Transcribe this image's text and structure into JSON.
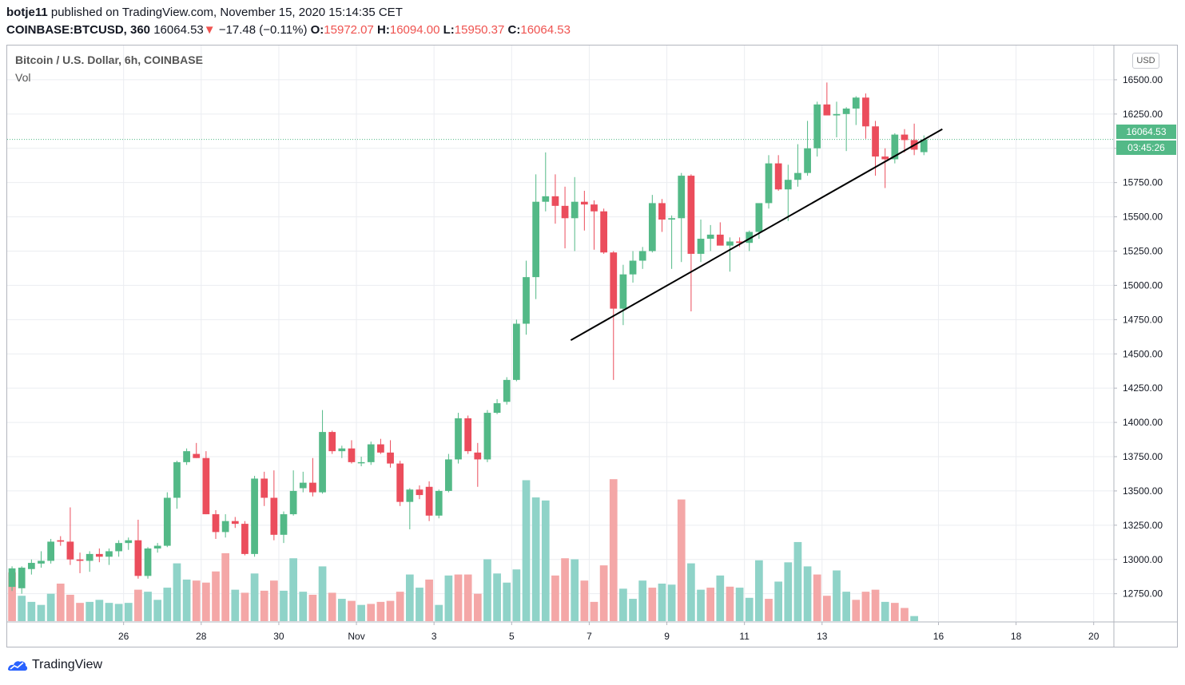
{
  "header": {
    "author": "botje11",
    "published": "published on TradingView.com, November 15, 2020 15:14:35 CET",
    "symbol": "COINBASE:BTCUSD, 360",
    "last": "16064.53",
    "change_arrow": "▼",
    "change": "−17.48 (−0.11%)",
    "open_label": "O:",
    "open": "15972.07",
    "high_label": "H:",
    "high": "16094.00",
    "low_label": "L:",
    "low": "15950.37",
    "close_label": "C:",
    "close": "16064.53"
  },
  "legend": {
    "title": "Bitcoin / U.S. Dollar, 6h, COINBASE",
    "volume": "Vol"
  },
  "price_scale": {
    "currency": "USD",
    "last_price": "16064.53",
    "countdown": "03:45:26"
  },
  "footer": {
    "brand": "TradingView"
  },
  "colors": {
    "up": "#53b987",
    "down": "#eb4d5c",
    "up_vol": "#8fd3c8",
    "down_vol": "#f4a7a7",
    "grid": "#ebedf1",
    "trendline": "#000000"
  },
  "chart_data": {
    "type": "candlestick",
    "ylim": [
      12550,
      16750
    ],
    "y_ticks": [
      "16500.00",
      "16250.00",
      "16000.00",
      "15750.00",
      "15500.00",
      "15250.00",
      "15000.00",
      "14750.00",
      "14500.00",
      "14250.00",
      "14000.00",
      "13750.00",
      "13500.00",
      "13250.00",
      "13000.00",
      "12750.00"
    ],
    "x_ticks": [
      {
        "label": "26",
        "bar": 11.5
      },
      {
        "label": "28",
        "bar": 19.5
      },
      {
        "label": "30",
        "bar": 27.5
      },
      {
        "label": "Nov",
        "bar": 35.5
      },
      {
        "label": "3",
        "bar": 43.5
      },
      {
        "label": "5",
        "bar": 51.5
      },
      {
        "label": "7",
        "bar": 59.5
      },
      {
        "label": "9",
        "bar": 67.5
      },
      {
        "label": "11",
        "bar": 75.5
      },
      {
        "label": "13",
        "bar": 83.5
      },
      {
        "label": "16",
        "bar": 95.5
      },
      {
        "label": "18",
        "bar": 103.5
      },
      {
        "label": "20",
        "bar": 111.5
      }
    ],
    "total_slots": 114,
    "candles": [
      {
        "o": 12800,
        "h": 12950,
        "l": 12770,
        "c": 12935
      },
      {
        "o": 12790,
        "h": 12950,
        "l": 12750,
        "c": 12940
      },
      {
        "o": 12930,
        "h": 13000,
        "l": 12890,
        "c": 12975
      },
      {
        "o": 12970,
        "h": 13060,
        "l": 12940,
        "c": 12990
      },
      {
        "o": 12990,
        "h": 13150,
        "l": 12970,
        "c": 13130
      },
      {
        "o": 13140,
        "h": 13170,
        "l": 13100,
        "c": 13130
      },
      {
        "o": 13130,
        "h": 13380,
        "l": 12960,
        "c": 13000
      },
      {
        "o": 13000,
        "h": 13050,
        "l": 12900,
        "c": 12990
      },
      {
        "o": 12990,
        "h": 13060,
        "l": 12910,
        "c": 13040
      },
      {
        "o": 13040,
        "h": 13080,
        "l": 12980,
        "c": 13020
      },
      {
        "o": 13020,
        "h": 13080,
        "l": 12960,
        "c": 13060
      },
      {
        "o": 13060,
        "h": 13140,
        "l": 13020,
        "c": 13120
      },
      {
        "o": 13120,
        "h": 13160,
        "l": 13070,
        "c": 13140
      },
      {
        "o": 13140,
        "h": 13290,
        "l": 12860,
        "c": 12880
      },
      {
        "o": 12880,
        "h": 13090,
        "l": 12860,
        "c": 13080
      },
      {
        "o": 13080,
        "h": 13120,
        "l": 13050,
        "c": 13100
      },
      {
        "o": 13100,
        "h": 13490,
        "l": 13090,
        "c": 13450
      },
      {
        "o": 13450,
        "h": 13720,
        "l": 13370,
        "c": 13710
      },
      {
        "o": 13710,
        "h": 13810,
        "l": 13690,
        "c": 13790
      },
      {
        "o": 13770,
        "h": 13850,
        "l": 13740,
        "c": 13740
      },
      {
        "o": 13740,
        "h": 13790,
        "l": 13330,
        "c": 13330
      },
      {
        "o": 13330,
        "h": 13360,
        "l": 13150,
        "c": 13200
      },
      {
        "o": 13200,
        "h": 13330,
        "l": 13160,
        "c": 13280
      },
      {
        "o": 13280,
        "h": 13310,
        "l": 13230,
        "c": 13260
      },
      {
        "o": 13260,
        "h": 13280,
        "l": 13030,
        "c": 13040
      },
      {
        "o": 13040,
        "h": 13610,
        "l": 13020,
        "c": 13590
      },
      {
        "o": 13590,
        "h": 13640,
        "l": 13390,
        "c": 13450
      },
      {
        "o": 13450,
        "h": 13650,
        "l": 13140,
        "c": 13180
      },
      {
        "o": 13180,
        "h": 13350,
        "l": 13120,
        "c": 13330
      },
      {
        "o": 13330,
        "h": 13650,
        "l": 13320,
        "c": 13500
      },
      {
        "o": 13520,
        "h": 13640,
        "l": 13490,
        "c": 13560
      },
      {
        "o": 13560,
        "h": 13740,
        "l": 13460,
        "c": 13490
      },
      {
        "o": 13490,
        "h": 14090,
        "l": 13480,
        "c": 13930
      },
      {
        "o": 13930,
        "h": 13940,
        "l": 13770,
        "c": 13790
      },
      {
        "o": 13790,
        "h": 13830,
        "l": 13740,
        "c": 13810
      },
      {
        "o": 13810,
        "h": 13870,
        "l": 13700,
        "c": 13710
      },
      {
        "o": 13710,
        "h": 13750,
        "l": 13680,
        "c": 13710
      },
      {
        "o": 13710,
        "h": 13860,
        "l": 13690,
        "c": 13840
      },
      {
        "o": 13840,
        "h": 13880,
        "l": 13770,
        "c": 13780
      },
      {
        "o": 13780,
        "h": 13870,
        "l": 13670,
        "c": 13700
      },
      {
        "o": 13700,
        "h": 13720,
        "l": 13390,
        "c": 13420
      },
      {
        "o": 13420,
        "h": 13520,
        "l": 13220,
        "c": 13510
      },
      {
        "o": 13510,
        "h": 13540,
        "l": 13440,
        "c": 13470
      },
      {
        "o": 13530,
        "h": 13570,
        "l": 13280,
        "c": 13320
      },
      {
        "o": 13320,
        "h": 13510,
        "l": 13300,
        "c": 13500
      },
      {
        "o": 13500,
        "h": 13770,
        "l": 13490,
        "c": 13730
      },
      {
        "o": 13730,
        "h": 14070,
        "l": 13700,
        "c": 14030
      },
      {
        "o": 14030,
        "h": 14050,
        "l": 13770,
        "c": 13790
      },
      {
        "o": 13780,
        "h": 13850,
        "l": 13530,
        "c": 13730
      },
      {
        "o": 13730,
        "h": 14090,
        "l": 13710,
        "c": 14070
      },
      {
        "o": 14070,
        "h": 14170,
        "l": 14060,
        "c": 14140
      },
      {
        "o": 14150,
        "h": 14330,
        "l": 14130,
        "c": 14310
      },
      {
        "o": 14310,
        "h": 14750,
        "l": 14300,
        "c": 14720
      },
      {
        "o": 14720,
        "h": 15180,
        "l": 14640,
        "c": 15060
      },
      {
        "o": 15060,
        "h": 15810,
        "l": 14900,
        "c": 15610
      },
      {
        "o": 15610,
        "h": 15970,
        "l": 15540,
        "c": 15650
      },
      {
        "o": 15650,
        "h": 15810,
        "l": 15450,
        "c": 15580
      },
      {
        "o": 15580,
        "h": 15720,
        "l": 15270,
        "c": 15490
      },
      {
        "o": 15490,
        "h": 15790,
        "l": 15250,
        "c": 15610
      },
      {
        "o": 15610,
        "h": 15690,
        "l": 15400,
        "c": 15590
      },
      {
        "o": 15590,
        "h": 15620,
        "l": 15260,
        "c": 15540
      },
      {
        "o": 15540,
        "h": 15560,
        "l": 15230,
        "c": 15240
      },
      {
        "o": 15240,
        "h": 15250,
        "l": 14310,
        "c": 14830
      },
      {
        "o": 14830,
        "h": 15150,
        "l": 14710,
        "c": 15080
      },
      {
        "o": 15080,
        "h": 15250,
        "l": 15020,
        "c": 15180
      },
      {
        "o": 15180,
        "h": 15280,
        "l": 15120,
        "c": 15250
      },
      {
        "o": 15250,
        "h": 15660,
        "l": 15240,
        "c": 15600
      },
      {
        "o": 15600,
        "h": 15630,
        "l": 15390,
        "c": 15480
      },
      {
        "o": 15480,
        "h": 15510,
        "l": 15120,
        "c": 15490
      },
      {
        "o": 15490,
        "h": 15820,
        "l": 15170,
        "c": 15800
      },
      {
        "o": 15800,
        "h": 15810,
        "l": 14810,
        "c": 15230
      },
      {
        "o": 15230,
        "h": 15480,
        "l": 15170,
        "c": 15340
      },
      {
        "o": 15340,
        "h": 15440,
        "l": 15250,
        "c": 15370
      },
      {
        "o": 15370,
        "h": 15460,
        "l": 15300,
        "c": 15290
      },
      {
        "o": 15290,
        "h": 15350,
        "l": 15100,
        "c": 15320
      },
      {
        "o": 15320,
        "h": 15350,
        "l": 15280,
        "c": 15310
      },
      {
        "o": 15310,
        "h": 15400,
        "l": 15250,
        "c": 15390
      },
      {
        "o": 15390,
        "h": 15590,
        "l": 15340,
        "c": 15600
      },
      {
        "o": 15600,
        "h": 15950,
        "l": 15560,
        "c": 15890
      },
      {
        "o": 15890,
        "h": 15950,
        "l": 15690,
        "c": 15700
      },
      {
        "o": 15700,
        "h": 15880,
        "l": 15470,
        "c": 15770
      },
      {
        "o": 15770,
        "h": 16030,
        "l": 15720,
        "c": 15820
      },
      {
        "o": 15820,
        "h": 16200,
        "l": 15800,
        "c": 16000
      },
      {
        "o": 16000,
        "h": 16340,
        "l": 15940,
        "c": 16320
      },
      {
        "o": 16320,
        "h": 16480,
        "l": 16250,
        "c": 16240
      },
      {
        "o": 16240,
        "h": 16340,
        "l": 16080,
        "c": 16250
      },
      {
        "o": 16250,
        "h": 16300,
        "l": 15980,
        "c": 16290
      },
      {
        "o": 16290,
        "h": 16380,
        "l": 16170,
        "c": 16370
      },
      {
        "o": 16370,
        "h": 16400,
        "l": 16070,
        "c": 16160
      },
      {
        "o": 16160,
        "h": 16200,
        "l": 15800,
        "c": 15940
      },
      {
        "o": 15940,
        "h": 16000,
        "l": 15710,
        "c": 15920
      },
      {
        "o": 15920,
        "h": 16110,
        "l": 15890,
        "c": 16100
      },
      {
        "o": 16100,
        "h": 16140,
        "l": 15970,
        "c": 16060
      },
      {
        "o": 16060,
        "h": 16180,
        "l": 15950,
        "c": 15990
      },
      {
        "o": 15972,
        "h": 16094,
        "l": 15950,
        "c": 16064
      }
    ],
    "volume": [
      {
        "v": 0.48,
        "up": false
      },
      {
        "v": 0.25,
        "up": true
      },
      {
        "v": 0.19,
        "up": true
      },
      {
        "v": 0.16,
        "up": true
      },
      {
        "v": 0.27,
        "up": true
      },
      {
        "v": 0.37,
        "up": false
      },
      {
        "v": 0.26,
        "up": false
      },
      {
        "v": 0.18,
        "up": false
      },
      {
        "v": 0.19,
        "up": true
      },
      {
        "v": 0.21,
        "up": true
      },
      {
        "v": 0.18,
        "up": true
      },
      {
        "v": 0.17,
        "up": true
      },
      {
        "v": 0.18,
        "up": true
      },
      {
        "v": 0.31,
        "up": false
      },
      {
        "v": 0.29,
        "up": true
      },
      {
        "v": 0.21,
        "up": true
      },
      {
        "v": 0.33,
        "up": true
      },
      {
        "v": 0.57,
        "up": true
      },
      {
        "v": 0.41,
        "up": true
      },
      {
        "v": 0.4,
        "up": false
      },
      {
        "v": 0.38,
        "up": false
      },
      {
        "v": 0.49,
        "up": false
      },
      {
        "v": 0.67,
        "up": false
      },
      {
        "v": 0.31,
        "up": true
      },
      {
        "v": 0.28,
        "up": false
      },
      {
        "v": 0.47,
        "up": true
      },
      {
        "v": 0.3,
        "up": false
      },
      {
        "v": 0.4,
        "up": false
      },
      {
        "v": 0.3,
        "up": true
      },
      {
        "v": 0.62,
        "up": true
      },
      {
        "v": 0.29,
        "up": true
      },
      {
        "v": 0.26,
        "up": false
      },
      {
        "v": 0.54,
        "up": true
      },
      {
        "v": 0.28,
        "up": false
      },
      {
        "v": 0.22,
        "up": true
      },
      {
        "v": 0.2,
        "up": false
      },
      {
        "v": 0.16,
        "up": true
      },
      {
        "v": 0.17,
        "up": false
      },
      {
        "v": 0.19,
        "up": false
      },
      {
        "v": 0.2,
        "up": false
      },
      {
        "v": 0.29,
        "up": false
      },
      {
        "v": 0.46,
        "up": true
      },
      {
        "v": 0.33,
        "up": true
      },
      {
        "v": 0.41,
        "up": false
      },
      {
        "v": 0.16,
        "up": true
      },
      {
        "v": 0.45,
        "up": true
      },
      {
        "v": 0.46,
        "up": false
      },
      {
        "v": 0.46,
        "up": false
      },
      {
        "v": 0.27,
        "up": false
      },
      {
        "v": 0.61,
        "up": true
      },
      {
        "v": 0.47,
        "up": true
      },
      {
        "v": 0.38,
        "up": true
      },
      {
        "v": 0.51,
        "up": true
      },
      {
        "v": 1.39,
        "up": true
      },
      {
        "v": 1.22,
        "up": true
      },
      {
        "v": 1.19,
        "up": true
      },
      {
        "v": 0.45,
        "up": false
      },
      {
        "v": 0.62,
        "up": false
      },
      {
        "v": 0.61,
        "up": true
      },
      {
        "v": 0.4,
        "up": false
      },
      {
        "v": 0.19,
        "up": false
      },
      {
        "v": 0.55,
        "up": false
      },
      {
        "v": 1.4,
        "up": false
      },
      {
        "v": 0.32,
        "up": true
      },
      {
        "v": 0.22,
        "up": true
      },
      {
        "v": 0.4,
        "up": true
      },
      {
        "v": 0.33,
        "up": false
      },
      {
        "v": 0.37,
        "up": true
      },
      {
        "v": 0.36,
        "up": true
      },
      {
        "v": 1.2,
        "up": false
      },
      {
        "v": 0.57,
        "up": true
      },
      {
        "v": 0.31,
        "up": true
      },
      {
        "v": 0.33,
        "up": false
      },
      {
        "v": 0.45,
        "up": true
      },
      {
        "v": 0.34,
        "up": false
      },
      {
        "v": 0.33,
        "up": true
      },
      {
        "v": 0.23,
        "up": true
      },
      {
        "v": 0.6,
        "up": true
      },
      {
        "v": 0.22,
        "up": false
      },
      {
        "v": 0.39,
        "up": true
      },
      {
        "v": 0.58,
        "up": true
      },
      {
        "v": 0.78,
        "up": true
      },
      {
        "v": 0.54,
        "up": true
      },
      {
        "v": 0.46,
        "up": false
      },
      {
        "v": 0.25,
        "up": false
      },
      {
        "v": 0.5,
        "up": true
      },
      {
        "v": 0.29,
        "up": true
      },
      {
        "v": 0.21,
        "up": false
      },
      {
        "v": 0.29,
        "up": false
      },
      {
        "v": 0.31,
        "up": false
      },
      {
        "v": 0.19,
        "up": true
      },
      {
        "v": 0.18,
        "up": false
      },
      {
        "v": 0.13,
        "up": false
      },
      {
        "v": 0.05,
        "up": true
      }
    ],
    "trendline": {
      "from": {
        "bar": 57.6,
        "price": 14600
      },
      "to": {
        "bar": 95.9,
        "price": 16140
      }
    }
  }
}
